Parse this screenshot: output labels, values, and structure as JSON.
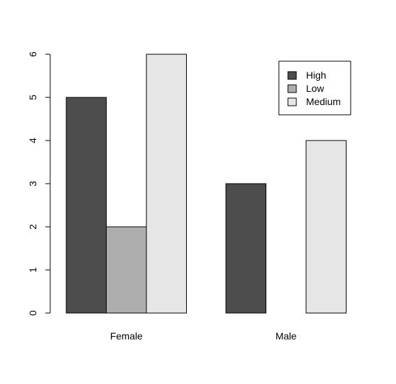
{
  "chart_data": {
    "type": "bar",
    "categories": [
      "Female",
      "Male"
    ],
    "series": [
      {
        "name": "High",
        "values": [
          5,
          3
        ],
        "color": "#4d4d4d"
      },
      {
        "name": "Low",
        "values": [
          2,
          0
        ],
        "color": "#aeaeae"
      },
      {
        "name": "Medium",
        "values": [
          6,
          4
        ],
        "color": "#e6e6e6"
      }
    ],
    "yticks": [
      0,
      1,
      2,
      3,
      4,
      5,
      6
    ],
    "ylim": [
      0,
      6
    ],
    "grid": false,
    "legend_position": "top-right"
  }
}
